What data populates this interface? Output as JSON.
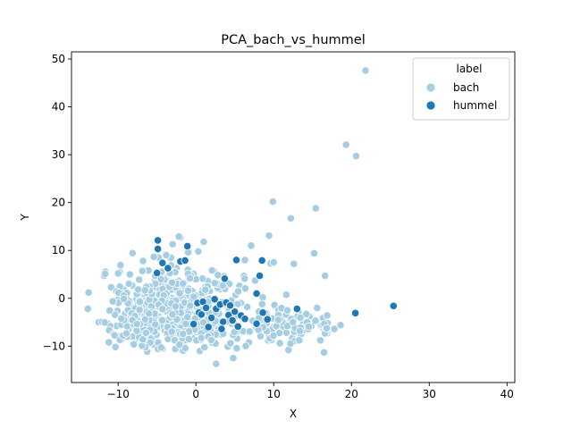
{
  "chart_data": {
    "type": "scatter",
    "title": "PCA_bach_vs_hummel",
    "xlabel": "X",
    "ylabel": "Y",
    "xlim": [
      -16,
      41
    ],
    "ylim": [
      -17.6,
      51.5
    ],
    "xticks": [
      -10,
      0,
      10,
      20,
      30,
      40
    ],
    "yticks": [
      -10,
      0,
      10,
      20,
      30,
      40,
      50
    ],
    "xtick_labels": [
      "−10",
      "0",
      "10",
      "20",
      "30",
      "40"
    ],
    "ytick_labels": [
      "−10",
      "0",
      "10",
      "20",
      "30",
      "40",
      "50"
    ],
    "grid": false,
    "legend": {
      "placement": "top-right",
      "title": "label",
      "entries": [
        {
          "name": "bach",
          "color": "#a6cee3"
        },
        {
          "name": "hummel",
          "color": "#1f78b4"
        }
      ]
    },
    "series": [
      {
        "name": "bach",
        "color": "#a6cee3",
        "cluster_points": [
          [
            -13.8,
            1.2
          ],
          [
            -13.9,
            -2.2
          ],
          [
            -12.5,
            -5.0
          ],
          [
            -11.8,
            4.7
          ],
          [
            -11.2,
            -9.2
          ],
          [
            -10.9,
            2.3
          ],
          [
            -10.5,
            -0.5
          ],
          [
            -10.2,
            -5.8
          ],
          [
            -9.8,
            5.5
          ],
          [
            -9.6,
            -8.7
          ],
          [
            -9.3,
            1.8
          ],
          [
            -9.1,
            -3.2
          ],
          [
            -8.7,
            -6.5
          ],
          [
            -8.5,
            5.0
          ],
          [
            -8.2,
            2.7
          ],
          [
            -7.9,
            -1.4
          ],
          [
            -7.6,
            -8.4
          ],
          [
            -7.3,
            3.9
          ],
          [
            -7.1,
            -4.2
          ],
          [
            -6.8,
            7.8
          ],
          [
            -6.6,
            0.4
          ],
          [
            -6.3,
            -6.8
          ],
          [
            -6.1,
            5.8
          ],
          [
            -5.8,
            -2.4
          ],
          [
            -5.5,
            -9.6
          ],
          [
            -5.3,
            2.0
          ],
          [
            -5.0,
            -5.1
          ],
          [
            -4.8,
            8.5
          ],
          [
            -4.5,
            -0.8
          ],
          [
            -4.3,
            -10.5
          ],
          [
            -4.0,
            4.2
          ],
          [
            -3.8,
            -7.3
          ],
          [
            -3.5,
            1.1
          ],
          [
            -3.3,
            -3.9
          ],
          [
            -3.0,
            11.3
          ],
          [
            -2.8,
            -8.9
          ],
          [
            -2.5,
            6.3
          ],
          [
            -2.3,
            -1.7
          ],
          [
            -2.0,
            12.7
          ],
          [
            -1.8,
            -10.9
          ],
          [
            -1.5,
            3.2
          ],
          [
            -1.3,
            -5.4
          ],
          [
            -1.0,
            9.6
          ],
          [
            -0.8,
            -0.3
          ],
          [
            -0.5,
            -8.1
          ],
          [
            -0.3,
            5.1
          ],
          [
            0.0,
            -3.0
          ],
          [
            0.3,
            9.8
          ],
          [
            0.5,
            -11.0
          ],
          [
            0.8,
            1.6
          ],
          [
            1.0,
            11.8
          ],
          [
            1.3,
            -6.1
          ],
          [
            1.5,
            3.8
          ],
          [
            1.8,
            -2.2
          ],
          [
            2.1,
            -9.3
          ],
          [
            2.3,
            5.7
          ],
          [
            2.6,
            -13.7
          ],
          [
            2.8,
            -4.5
          ],
          [
            3.1,
            1.9
          ],
          [
            3.3,
            -7.6
          ],
          [
            3.6,
            4.6
          ],
          [
            3.8,
            -1.2
          ],
          [
            4.1,
            -10.1
          ],
          [
            4.3,
            3.0
          ],
          [
            4.6,
            -5.3
          ],
          [
            4.8,
            -12.5
          ],
          [
            5.1,
            0.7
          ],
          [
            5.3,
            -8.4
          ],
          [
            5.6,
            2.6
          ],
          [
            5.8,
            -3.6
          ],
          [
            6.1,
            -6.9
          ],
          [
            6.3,
            8.0
          ],
          [
            6.6,
            -1.8
          ],
          [
            6.8,
            -9.2
          ],
          [
            7.1,
            11.0
          ],
          [
            7.3,
            -4.7
          ],
          [
            7.6,
            3.7
          ],
          [
            7.8,
            -6.2
          ],
          [
            8.1,
            -2.8
          ],
          [
            8.3,
            -7.9
          ],
          [
            8.6,
            0.2
          ],
          [
            8.8,
            -5.5
          ],
          [
            9.1,
            -3.1
          ],
          [
            9.3,
            -8.8
          ],
          [
            9.6,
            7.3
          ],
          [
            9.8,
            -4.2
          ],
          [
            10.1,
            -1.4
          ],
          [
            10.3,
            -6.7
          ],
          [
            10.6,
            -2.5
          ],
          [
            10.8,
            -9.4
          ],
          [
            11.1,
            -5.0
          ],
          [
            11.4,
            -7.0
          ],
          [
            11.6,
            -3.4
          ],
          [
            11.9,
            -10.8
          ],
          [
            12.1,
            -5.8
          ],
          [
            12.4,
            -8.3
          ],
          [
            12.6,
            -4.3
          ],
          [
            12.9,
            -6.4
          ],
          [
            13.2,
            -2.8
          ],
          [
            13.5,
            -7.5
          ],
          [
            13.8,
            -4.9
          ],
          [
            14.1,
            -5.8
          ],
          [
            14.6,
            -3.8
          ],
          [
            15.9,
            -8.7
          ],
          [
            16.3,
            -6.1
          ],
          [
            16.9,
            -7.3
          ],
          [
            17.8,
            -6.4
          ],
          [
            18.6,
            -5.6
          ]
        ],
        "outlier_points": [
          [
            21.8,
            47.6
          ],
          [
            19.3,
            32.1
          ],
          [
            20.6,
            29.7
          ],
          [
            9.9,
            20.2
          ],
          [
            15.4,
            18.8
          ],
          [
            12.2,
            16.7
          ],
          [
            9.4,
            13.1
          ],
          [
            -2.2,
            12.9
          ],
          [
            1.0,
            11.8
          ],
          [
            15.2,
            9.4
          ],
          [
            16.6,
            4.7
          ],
          [
            12.6,
            7.2
          ],
          [
            7.1,
            11.0
          ],
          [
            10.0,
            7.5
          ],
          [
            -13.8,
            1.2
          ]
        ]
      },
      {
        "name": "hummel",
        "color": "#1f78b4",
        "points": [
          [
            -4.9,
            12.1
          ],
          [
            -4.9,
            10.3
          ],
          [
            -1.1,
            10.9
          ],
          [
            -2.0,
            7.7
          ],
          [
            -1.4,
            7.9
          ],
          [
            -5.0,
            5.3
          ],
          [
            -3.6,
            6.3
          ],
          [
            -4.3,
            7.4
          ],
          [
            5.2,
            8.0
          ],
          [
            8.5,
            7.9
          ],
          [
            8.2,
            4.7
          ],
          [
            3.7,
            4.1
          ],
          [
            7.8,
            1.0
          ],
          [
            13.0,
            -2.2
          ],
          [
            0.2,
            -1.0
          ],
          [
            0.9,
            -0.7
          ],
          [
            0.4,
            -3.0
          ],
          [
            0.7,
            -3.4
          ],
          [
            -0.3,
            -5.4
          ],
          [
            1.3,
            -2.0
          ],
          [
            2.0,
            -4.1
          ],
          [
            2.6,
            -2.2
          ],
          [
            3.1,
            -1.3
          ],
          [
            3.5,
            -4.9
          ],
          [
            3.9,
            -0.9
          ],
          [
            4.2,
            -3.5
          ],
          [
            4.4,
            -1.5
          ],
          [
            4.7,
            -4.6
          ],
          [
            5.0,
            -2.8
          ],
          [
            5.4,
            -5.9
          ],
          [
            5.8,
            -3.6
          ],
          [
            8.6,
            -3.0
          ],
          [
            9.2,
            -4.4
          ],
          [
            7.8,
            -5.3
          ],
          [
            20.5,
            -3.1
          ],
          [
            25.4,
            -1.6
          ],
          [
            3.3,
            -6.4
          ],
          [
            1.6,
            -6.0
          ],
          [
            2.4,
            -0.2
          ],
          [
            6.3,
            -4.3
          ]
        ]
      }
    ]
  }
}
